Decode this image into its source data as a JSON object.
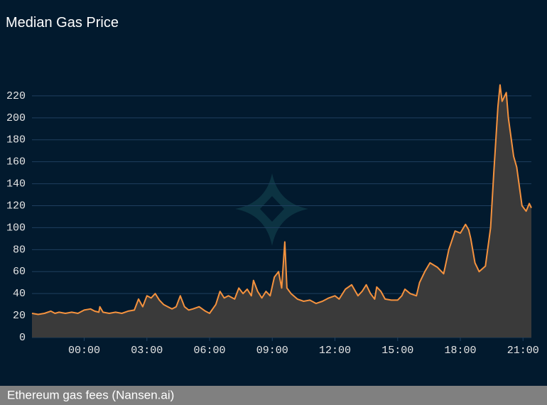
{
  "chart_data": {
    "type": "area-line",
    "title": "Median Gas Price",
    "caption": "Ethereum gas fees (Nansen.ai)",
    "color": "#f5923e",
    "fill": "#3a3a3a",
    "grid": true,
    "x": [
      -2.5,
      -2.2,
      -1.9,
      -1.6,
      -1.4,
      -1.2,
      -0.9,
      -0.6,
      -0.3,
      0,
      0.3,
      0.5,
      0.7,
      0.75,
      0.9,
      1.2,
      1.5,
      1.8,
      2.1,
      2.4,
      2.6,
      2.8,
      3.0,
      3.2,
      3.4,
      3.6,
      3.8,
      4.0,
      4.2,
      4.4,
      4.6,
      4.8,
      5.0,
      5.2,
      5.5,
      5.8,
      6.0,
      6.3,
      6.5,
      6.7,
      6.9,
      7.2,
      7.4,
      7.6,
      7.8,
      8.0,
      8.1,
      8.3,
      8.5,
      8.7,
      8.9,
      9.1,
      9.3,
      9.45,
      9.6,
      9.7,
      9.9,
      10.2,
      10.5,
      10.8,
      11.1,
      11.4,
      11.7,
      12.0,
      12.2,
      12.5,
      12.8,
      13.1,
      13.3,
      13.5,
      13.7,
      13.9,
      14.0,
      14.2,
      14.4,
      14.7,
      15.0,
      15.2,
      15.35,
      15.6,
      15.9,
      16.05,
      16.3,
      16.55,
      16.9,
      17.2,
      17.45,
      17.75,
      18.0,
      18.25,
      18.4,
      18.5,
      18.7,
      18.9,
      19.2,
      19.45,
      19.6,
      19.8,
      19.9,
      20.0,
      20.2,
      20.3,
      20.55,
      20.7,
      20.95,
      21.15,
      21.3,
      21.4
    ],
    "values": [
      22,
      21,
      22,
      24,
      22,
      23,
      22,
      23,
      22,
      25,
      26,
      24,
      23,
      28,
      23,
      22,
      23,
      22,
      24,
      25,
      35,
      28,
      38,
      36,
      40,
      34,
      30,
      28,
      26,
      28,
      38,
      28,
      25,
      26,
      28,
      24,
      22,
      30,
      42,
      36,
      38,
      35,
      45,
      40,
      44,
      38,
      52,
      42,
      36,
      42,
      38,
      55,
      60,
      45,
      87,
      45,
      40,
      35,
      33,
      34,
      31,
      33,
      36,
      38,
      35,
      44,
      48,
      38,
      42,
      48,
      40,
      35,
      46,
      42,
      35,
      34,
      34,
      38,
      44,
      40,
      38,
      50,
      60,
      68,
      64,
      58,
      80,
      97,
      95,
      103,
      98,
      90,
      68,
      60,
      65,
      100,
      150,
      210,
      230,
      215,
      223,
      200,
      165,
      155,
      120,
      115,
      122,
      118
    ],
    "xlim": [
      -2.5,
      21.4
    ],
    "xticks": [
      {
        "value": 0,
        "label": "00:00"
      },
      {
        "value": 3,
        "label": "03:00"
      },
      {
        "value": 6,
        "label": "06:00"
      },
      {
        "value": 9,
        "label": "09:00"
      },
      {
        "value": 12,
        "label": "12:00"
      },
      {
        "value": 15,
        "label": "15:00"
      },
      {
        "value": 18,
        "label": "18:00"
      },
      {
        "value": 21,
        "label": "21:00"
      }
    ],
    "ylim": [
      0,
      240
    ],
    "yticks": [
      0,
      20,
      40,
      60,
      80,
      100,
      120,
      140,
      160,
      180,
      200,
      220
    ]
  }
}
